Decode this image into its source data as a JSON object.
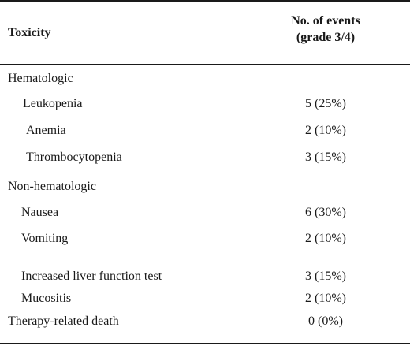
{
  "table": {
    "header": {
      "toxicity": "Toxicity",
      "events_line1": "No. of events",
      "events_line2": "(grade 3/4)"
    },
    "rows": [
      {
        "label": "Hematologic",
        "value": ""
      },
      {
        "label": "Leukopenia",
        "value": "5 (25%)"
      },
      {
        "label": "Anemia",
        "value": "2 (10%)"
      },
      {
        "label": "Thrombocytopenia",
        "value": "3 (15%)"
      },
      {
        "label": "Non-hematologic",
        "value": ""
      },
      {
        "label": "Nausea",
        "value": "6 (30%)"
      },
      {
        "label": "Vomiting",
        "value": "2 (10%)"
      },
      {
        "label": "Increased liver function test",
        "value": "3 (15%)"
      },
      {
        "label": "Mucositis",
        "value": "2 (10%)"
      },
      {
        "label": "Therapy-related death",
        "value": "0 (0%)"
      }
    ]
  }
}
